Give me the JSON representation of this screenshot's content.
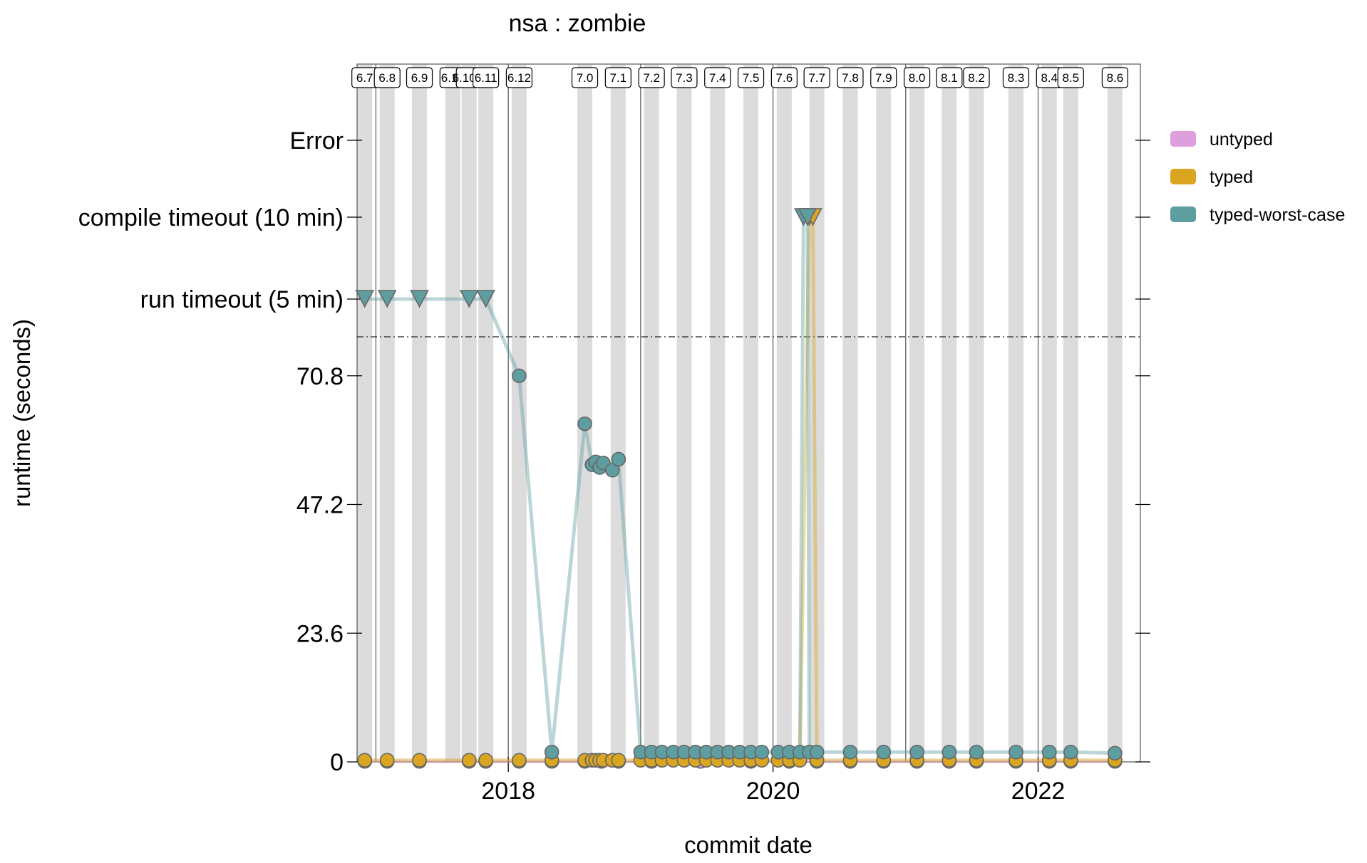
{
  "chart_data": {
    "type": "line",
    "title": "nsa : zombie",
    "xlabel": "commit date",
    "ylabel": "runtime (seconds)",
    "x_ticks": [
      "2018",
      "2020",
      "2022"
    ],
    "y_ticks": [
      "0",
      "23.6",
      "47.2",
      "70.8"
    ],
    "y_category_ticks": [
      "run timeout (5 min)",
      "compile timeout (10 min)",
      "Error"
    ],
    "ylim": [
      0,
      94.4
    ],
    "xlim": [
      "2016-11-10",
      "2022-10-10"
    ],
    "year_lines": [
      "2017-01-01",
      "2018-01-01",
      "2019-01-01",
      "2020-01-01",
      "2021-01-01",
      "2022-01-01",
      "2023-01-01"
    ],
    "versions": [
      {
        "label": "6.7",
        "date": "2016-12-01"
      },
      {
        "label": "6.8",
        "date": "2017-02-01"
      },
      {
        "label": "6.9",
        "date": "2017-05-01"
      },
      {
        "label": "6.10",
        "date": "2017-08-01"
      },
      {
        "label": "6.10.1",
        "date": "2017-09-15"
      },
      {
        "label": "6.11",
        "date": "2017-10-31"
      },
      {
        "label": "6.12",
        "date": "2018-01-31"
      },
      {
        "label": "7.0",
        "date": "2018-07-31"
      },
      {
        "label": "7.1",
        "date": "2018-10-31"
      },
      {
        "label": "7.2",
        "date": "2019-01-31"
      },
      {
        "label": "7.3",
        "date": "2019-05-01"
      },
      {
        "label": "7.4",
        "date": "2019-08-01"
      },
      {
        "label": "7.5",
        "date": "2019-11-01"
      },
      {
        "label": "7.6",
        "date": "2020-02-01"
      },
      {
        "label": "7.7",
        "date": "2020-05-01"
      },
      {
        "label": "7.8",
        "date": "2020-08-01"
      },
      {
        "label": "7.9",
        "date": "2020-11-01"
      },
      {
        "label": "8.0",
        "date": "2021-02-01"
      },
      {
        "label": "8.1",
        "date": "2021-05-01"
      },
      {
        "label": "8.2",
        "date": "2021-07-15"
      },
      {
        "label": "8.3",
        "date": "2021-11-01"
      },
      {
        "label": "8.4",
        "date": "2022-02-01"
      },
      {
        "label": "8.5",
        "date": "2022-04-01"
      },
      {
        "label": "8.6",
        "date": "2022-08-01"
      }
    ],
    "series": [
      {
        "name": "untyped",
        "color": "#dda0dd",
        "points": [
          [
            "2016-12-01",
            0.1
          ],
          [
            "2017-02-01",
            0.1
          ],
          [
            "2017-05-01",
            0.1
          ],
          [
            "2017-09-15",
            0.1
          ],
          [
            "2017-10-31",
            0.1
          ],
          [
            "2018-01-31",
            0.1
          ],
          [
            "2018-05-01",
            0.1
          ],
          [
            "2018-07-31",
            0.1
          ],
          [
            "2018-09-15",
            0.1
          ],
          [
            "2018-11-01",
            0.1
          ],
          [
            "2019-01-31",
            0.1
          ],
          [
            "2019-06-15",
            0.1
          ],
          [
            "2019-11-01",
            0.1
          ],
          [
            "2020-02-15",
            0.1
          ],
          [
            "2020-05-01",
            0.1
          ],
          [
            "2020-08-01",
            0.1
          ],
          [
            "2020-11-01",
            0.1
          ],
          [
            "2021-02-01",
            0.1
          ],
          [
            "2021-05-01",
            0.1
          ],
          [
            "2021-07-15",
            0.1
          ],
          [
            "2021-11-01",
            0.1
          ],
          [
            "2022-02-01",
            0.1
          ],
          [
            "2022-04-01",
            0.1
          ],
          [
            "2022-08-01",
            0.1
          ]
        ]
      },
      {
        "name": "typed",
        "color": "#daa520",
        "points": [
          [
            "2016-12-01",
            0.3
          ],
          [
            "2017-02-01",
            0.3
          ],
          [
            "2017-05-01",
            0.3
          ],
          [
            "2017-09-15",
            0.3
          ],
          [
            "2017-10-31",
            0.3
          ],
          [
            "2018-01-31",
            0.3
          ],
          [
            "2018-05-01",
            0.3
          ],
          [
            "2018-07-31",
            0.3
          ],
          [
            "2018-08-20",
            0.3
          ],
          [
            "2018-08-30",
            0.3
          ],
          [
            "2018-09-10",
            0.3
          ],
          [
            "2018-09-20",
            0.3
          ],
          [
            "2018-10-15",
            0.3
          ],
          [
            "2018-11-01",
            0.3
          ],
          [
            "2019-01-01",
            0.3
          ],
          [
            "2019-01-31",
            0.3
          ],
          [
            "2019-03-01",
            0.3
          ],
          [
            "2019-04-01",
            0.3
          ],
          [
            "2019-05-01",
            0.3
          ],
          [
            "2019-06-01",
            0.3
          ],
          [
            "2019-07-01",
            0.3
          ],
          [
            "2019-08-01",
            0.3
          ],
          [
            "2019-09-01",
            0.3
          ],
          [
            "2019-10-01",
            0.3
          ],
          [
            "2019-11-01",
            0.3
          ],
          [
            "2019-12-01",
            0.3
          ],
          [
            "2020-01-15",
            0.3
          ],
          [
            "2020-02-15",
            0.3
          ],
          [
            "2020-03-15",
            0.3
          ],
          [
            "2020-04-10",
            "compile timeout (10 min)"
          ],
          [
            "2020-04-20",
            "compile timeout (10 min)"
          ],
          [
            "2020-05-01",
            0.3
          ],
          [
            "2020-08-01",
            0.3
          ],
          [
            "2020-11-01",
            0.3
          ],
          [
            "2021-02-01",
            0.3
          ],
          [
            "2021-05-01",
            0.3
          ],
          [
            "2021-07-15",
            0.3
          ],
          [
            "2021-11-01",
            0.3
          ],
          [
            "2022-02-01",
            0.3
          ],
          [
            "2022-04-01",
            0.3
          ],
          [
            "2022-08-01",
            0.3
          ]
        ]
      },
      {
        "name": "typed-worst-case",
        "color": "#5f9ea0",
        "points": [
          [
            "2016-12-01",
            "run timeout (5 min)"
          ],
          [
            "2017-02-01",
            "run timeout (5 min)"
          ],
          [
            "2017-05-01",
            "run timeout (5 min)"
          ],
          [
            "2017-09-15",
            "run timeout (5 min)"
          ],
          [
            "2017-10-31",
            "run timeout (5 min)"
          ],
          [
            "2018-01-31",
            70.8
          ],
          [
            "2018-05-01",
            1.8
          ],
          [
            "2018-07-31",
            62.0
          ],
          [
            "2018-08-20",
            54.5
          ],
          [
            "2018-08-30",
            55.0
          ],
          [
            "2018-09-10",
            54.0
          ],
          [
            "2018-09-20",
            54.8
          ],
          [
            "2018-10-15",
            53.5
          ],
          [
            "2018-11-01",
            55.5
          ],
          [
            "2019-01-01",
            1.8
          ],
          [
            "2019-01-31",
            1.8
          ],
          [
            "2019-03-01",
            1.8
          ],
          [
            "2019-04-01",
            1.8
          ],
          [
            "2019-05-01",
            1.8
          ],
          [
            "2019-06-01",
            1.8
          ],
          [
            "2019-07-01",
            1.8
          ],
          [
            "2019-08-01",
            1.8
          ],
          [
            "2019-09-01",
            1.8
          ],
          [
            "2019-10-01",
            1.8
          ],
          [
            "2019-11-01",
            1.8
          ],
          [
            "2019-12-01",
            1.8
          ],
          [
            "2020-01-15",
            1.8
          ],
          [
            "2020-02-15",
            1.8
          ],
          [
            "2020-03-15",
            1.8
          ],
          [
            "2020-03-25",
            "compile timeout (10 min)"
          ],
          [
            "2020-04-05",
            "compile timeout (10 min)"
          ],
          [
            "2020-04-10",
            1.8
          ],
          [
            "2020-05-01",
            1.8
          ],
          [
            "2020-08-01",
            1.8
          ],
          [
            "2020-11-01",
            1.8
          ],
          [
            "2021-02-01",
            1.8
          ],
          [
            "2021-05-01",
            1.8
          ],
          [
            "2021-07-15",
            1.8
          ],
          [
            "2021-11-01",
            1.8
          ],
          [
            "2022-02-01",
            1.8
          ],
          [
            "2022-04-01",
            1.8
          ],
          [
            "2022-08-01",
            1.6
          ]
        ]
      }
    ],
    "legend": [
      "untyped",
      "typed",
      "typed-worst-case"
    ],
    "legend_position": "right",
    "grid": false
  }
}
